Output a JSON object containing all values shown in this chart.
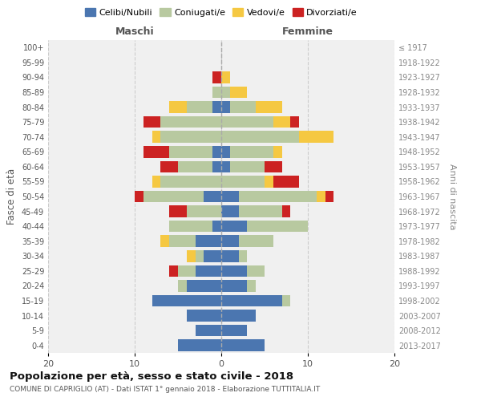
{
  "age_groups": [
    "0-4",
    "5-9",
    "10-14",
    "15-19",
    "20-24",
    "25-29",
    "30-34",
    "35-39",
    "40-44",
    "45-49",
    "50-54",
    "55-59",
    "60-64",
    "65-69",
    "70-74",
    "75-79",
    "80-84",
    "85-89",
    "90-94",
    "95-99",
    "100+"
  ],
  "birth_years": [
    "2013-2017",
    "2008-2012",
    "2003-2007",
    "1998-2002",
    "1993-1997",
    "1988-1992",
    "1983-1987",
    "1978-1982",
    "1973-1977",
    "1968-1972",
    "1963-1967",
    "1958-1962",
    "1953-1957",
    "1948-1952",
    "1943-1947",
    "1938-1942",
    "1933-1937",
    "1928-1932",
    "1923-1927",
    "1918-1922",
    "≤ 1917"
  ],
  "colors": {
    "celibi": "#4b76b0",
    "coniugati": "#b8c9a0",
    "vedovi": "#f5c842",
    "divorziati": "#cc2222"
  },
  "maschi": {
    "celibi": [
      5,
      3,
      4,
      8,
      4,
      3,
      2,
      3,
      1,
      0,
      2,
      0,
      1,
      1,
      0,
      0,
      1,
      0,
      0,
      0,
      0
    ],
    "coniugati": [
      0,
      0,
      0,
      0,
      1,
      2,
      1,
      3,
      5,
      4,
      7,
      7,
      4,
      5,
      7,
      7,
      3,
      1,
      0,
      0,
      0
    ],
    "vedovi": [
      0,
      0,
      0,
      0,
      0,
      0,
      1,
      1,
      0,
      0,
      0,
      1,
      0,
      0,
      1,
      0,
      2,
      0,
      0,
      0,
      0
    ],
    "divorziati": [
      0,
      0,
      0,
      0,
      0,
      1,
      0,
      0,
      0,
      2,
      1,
      0,
      2,
      3,
      0,
      2,
      0,
      0,
      1,
      0,
      0
    ]
  },
  "femmine": {
    "celibi": [
      5,
      3,
      4,
      7,
      3,
      3,
      2,
      2,
      3,
      2,
      2,
      0,
      1,
      1,
      0,
      0,
      1,
      0,
      0,
      0,
      0
    ],
    "coniugati": [
      0,
      0,
      0,
      1,
      1,
      2,
      1,
      4,
      7,
      5,
      9,
      5,
      4,
      5,
      9,
      6,
      3,
      1,
      0,
      0,
      0
    ],
    "vedovi": [
      0,
      0,
      0,
      0,
      0,
      0,
      0,
      0,
      0,
      0,
      1,
      1,
      0,
      1,
      4,
      2,
      3,
      2,
      1,
      0,
      0
    ],
    "divorziati": [
      0,
      0,
      0,
      0,
      0,
      0,
      0,
      0,
      0,
      1,
      1,
      3,
      2,
      0,
      0,
      1,
      0,
      0,
      0,
      0,
      0
    ]
  },
  "xlim": 20,
  "title": "Popolazione per età, sesso e stato civile - 2018",
  "subtitle": "COMUNE DI CAPRIGLIO (AT) - Dati ISTAT 1° gennaio 2018 - Elaborazione TUTTITALIA.IT",
  "ylabel_left": "Fasce di età",
  "ylabel_right": "Anni di nascita",
  "xlabel_left": "Maschi",
  "xlabel_right": "Femmine",
  "legend_labels": [
    "Celibi/Nubili",
    "Coniugati/e",
    "Vedovi/e",
    "Divorziati/e"
  ],
  "background_color": "#ffffff",
  "grid_color": "#cccccc"
}
